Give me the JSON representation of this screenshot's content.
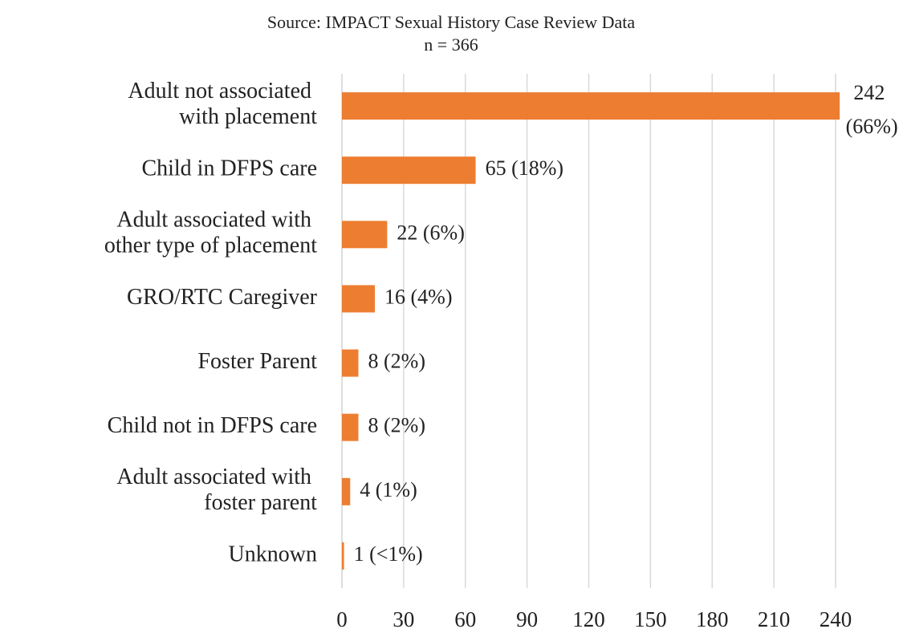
{
  "chart_data": {
    "type": "hbar",
    "title": "Source: IMPACT Sexual History Case Review Data",
    "subtitle": "n = 366",
    "categories": [
      "Adult not associated with placement",
      "Child in DFPS care",
      "Adult associated with other type of placement",
      "GRO/RTC Caregiver",
      "Foster Parent",
      "Child not in DFPS care",
      "Adult associated with foster parent",
      "Unknown"
    ],
    "values": [
      242,
      65,
      22,
      16,
      8,
      8,
      4,
      1
    ],
    "value_labels": [
      "242 (66%)",
      "65 (18%)",
      "22 (6%)",
      "16 (4%)",
      "8 (2%)",
      "8 (2%)",
      "4 (1%)",
      "1 (<1%)"
    ],
    "color": "#ed7d31",
    "xlim": [
      0,
      240
    ],
    "xticks": [
      0,
      30,
      60,
      90,
      120,
      150,
      180,
      210,
      240
    ],
    "grid": true
  }
}
